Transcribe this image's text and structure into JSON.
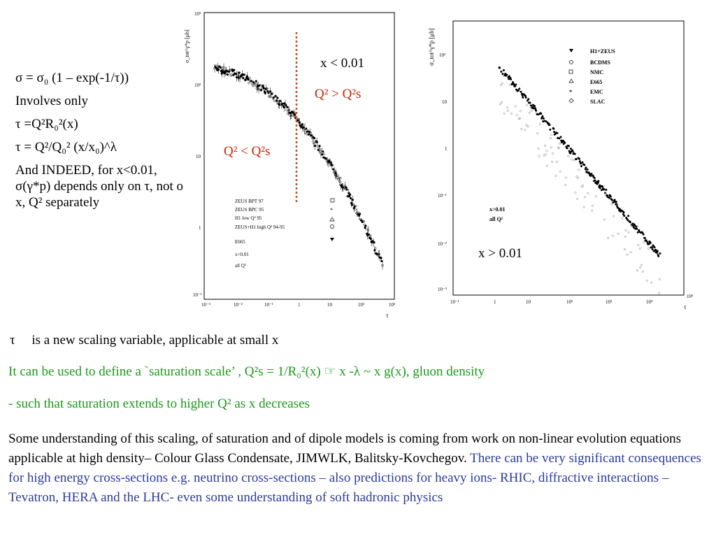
{
  "left": {
    "formula1": "σ = σ₀ (1 – exp(-1/τ))",
    "involves": "Involves only",
    "formula2": "τ    =Q²R₀²(x)",
    "formula3": "τ = Q²/Q₀² (x/x₀)^λ",
    "indeed": "And INDEED, for x<0.01, σ(γ*p) depends only on τ, not on x, Q² separately"
  },
  "fig1": {
    "ylabel": "σ_tot^γ*p [μb]",
    "xlabel": "τ",
    "x_cut": "x < 0.01",
    "above": "Q² > Q²s",
    "below": "Q² < Q²s",
    "legend": [
      "ZEUS BPT 97",
      "ZEUS BPC 95",
      "H1 low Q² 95",
      "ZEUS+H1 high Q² 94-95",
      "E665",
      "x<0.01",
      "all Q²"
    ],
    "xticks": [
      "10⁻³",
      "10⁻²",
      "10⁻¹",
      "1",
      "10",
      "10²",
      "10³"
    ],
    "yticks": [
      "10³",
      "10²",
      "10",
      "1",
      "10⁻¹"
    ]
  },
  "fig2": {
    "ylabel": "σ_tot^γ*p [μb]",
    "xlabel": "τ",
    "legend": [
      "H1+ZEUS",
      "BCDMS",
      "NMC",
      "E665",
      "EMC",
      "SLAC"
    ],
    "label1": "x>0.01",
    "label2": "all Q²",
    "note": "x > 0.01",
    "xticks": [
      "10⁻¹",
      "1",
      "10",
      "10²",
      "10³",
      "10⁴",
      "10⁵"
    ],
    "yticks": [
      "10²",
      "10",
      "1",
      "10⁻¹",
      "10⁻²",
      "10⁻³"
    ]
  },
  "tau_line": "τ     is a new scaling variable, applicable at small x",
  "green1": "It can be used to define a `saturation scale’ , Q²s = 1/R₀²(x) ☞    x -λ    ~ x g(x),  gluon density",
  "green2": "- such that saturation extends to higher Q² as x decreases",
  "para_black": "Some understanding of this scaling, of saturation and of dipole models is coming from work on non-linear evolution equations applicable at high density– Colour Glass Condensate, JIMWLK, Balitsky-Kovchegov. ",
  "para_blue": "There can be very significant consequences for high energy cross-sections e.g. neutrino cross-sections – also predictions for heavy ions- RHIC, diffractive interactions – Tevatron, HERA and the LHC-  even some understanding of soft hadronic physics",
  "colors": {
    "green": "#1a9a1a",
    "blue": "#2b3b9e",
    "red": "#cc2200",
    "dotted": "#c8501e"
  }
}
